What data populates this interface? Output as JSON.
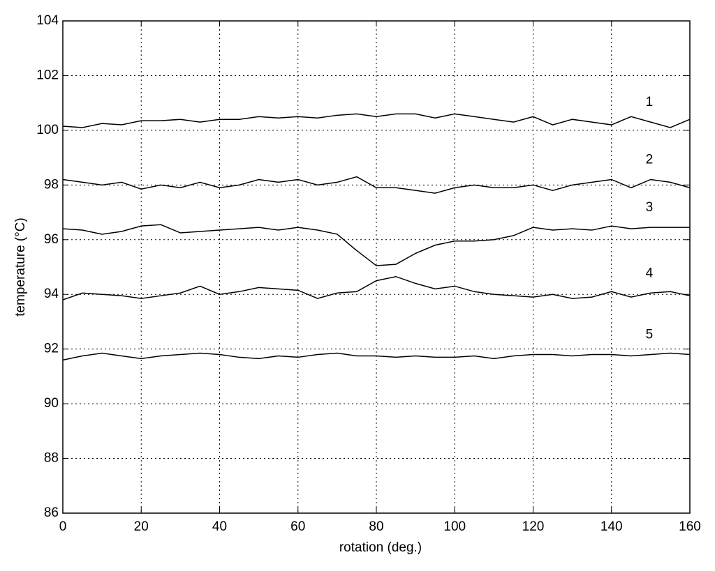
{
  "chart_data": {
    "type": "line",
    "x_label": "rotation (deg.)",
    "y_label": "temperature (°C)",
    "x": [
      0,
      5,
      10,
      15,
      20,
      25,
      30,
      35,
      40,
      45,
      50,
      55,
      60,
      65,
      70,
      75,
      80,
      85,
      90,
      95,
      100,
      105,
      110,
      115,
      120,
      125,
      130,
      135,
      140,
      145,
      150,
      155,
      160
    ],
    "series": [
      {
        "name": "1",
        "color": "#000000",
        "values": [
          100.15,
          100.1,
          100.25,
          100.2,
          100.35,
          100.35,
          100.4,
          100.3,
          100.4,
          100.4,
          100.5,
          100.45,
          100.5,
          100.45,
          100.55,
          100.6,
          100.5,
          100.6,
          100.6,
          100.45,
          100.6,
          100.5,
          100.4,
          100.3,
          100.5,
          100.2,
          100.4,
          100.3,
          100.2,
          100.5,
          100.3,
          100.1,
          100.4
        ]
      },
      {
        "name": "2",
        "color": "#000000",
        "values": [
          98.2,
          98.1,
          98.0,
          98.1,
          97.85,
          98.0,
          97.9,
          98.1,
          97.9,
          98.0,
          98.2,
          98.1,
          98.2,
          98.0,
          98.1,
          98.3,
          97.9,
          97.9,
          97.8,
          97.7,
          97.9,
          98.0,
          97.9,
          97.9,
          98.0,
          97.8,
          98.0,
          98.1,
          98.2,
          97.9,
          98.2,
          98.1,
          97.9
        ]
      },
      {
        "name": "3",
        "color": "#000000",
        "values": [
          96.4,
          96.35,
          96.2,
          96.3,
          96.5,
          96.55,
          96.25,
          96.3,
          96.35,
          96.4,
          96.45,
          96.35,
          96.45,
          96.35,
          96.2,
          95.6,
          95.05,
          95.1,
          95.5,
          95.8,
          95.95,
          95.95,
          96.0,
          96.15,
          96.45,
          96.35,
          96.4,
          96.35,
          96.5,
          96.4,
          96.45,
          96.45,
          96.45
        ]
      },
      {
        "name": "4",
        "color": "#000000",
        "values": [
          93.8,
          94.05,
          94.0,
          93.95,
          93.85,
          93.95,
          94.05,
          94.3,
          94.0,
          94.1,
          94.25,
          94.2,
          94.15,
          93.85,
          94.05,
          94.1,
          94.5,
          94.65,
          94.4,
          94.2,
          94.3,
          94.1,
          94.0,
          93.95,
          93.9,
          94.0,
          93.85,
          93.9,
          94.1,
          93.9,
          94.05,
          94.1,
          93.95
        ]
      },
      {
        "name": "5",
        "color": "#000000",
        "values": [
          91.6,
          91.75,
          91.85,
          91.75,
          91.65,
          91.75,
          91.8,
          91.85,
          91.8,
          91.7,
          91.65,
          91.75,
          91.7,
          91.8,
          91.85,
          91.75,
          91.75,
          91.7,
          91.75,
          91.7,
          91.7,
          91.75,
          91.65,
          91.75,
          91.8,
          91.8,
          91.75,
          91.8,
          91.8,
          91.75,
          91.8,
          91.85,
          91.8
        ]
      }
    ],
    "xlim": [
      0,
      160
    ],
    "xticks": [
      0,
      20,
      40,
      60,
      80,
      100,
      120,
      140,
      160
    ],
    "ylim": [
      86,
      104
    ],
    "yticks": [
      86,
      88,
      90,
      92,
      94,
      96,
      98,
      100,
      102,
      104
    ],
    "grid": true
  }
}
